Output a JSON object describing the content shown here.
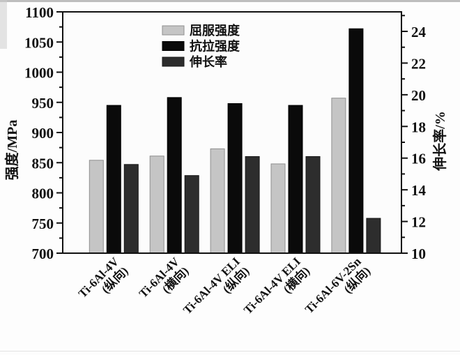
{
  "figure": {
    "background_color": "#fdfdfd",
    "plot_background": "#fcfcfc",
    "axis_color": "#111111"
  },
  "chart_data": {
    "type": "bar",
    "grid": false,
    "categories": [
      {
        "line1": "Ti-6Al-4V",
        "line2": "(纵向)"
      },
      {
        "line1": "Ti-6Al-4V",
        "line2": "(横向)"
      },
      {
        "line1": "Ti-6Al-4V ELI",
        "line2": "(纵向)"
      },
      {
        "line1": "Ti-6Al-4V ELI",
        "line2": "(横向)"
      },
      {
        "line1": "Ti-6Al-6V-2Sn",
        "line2": "(纵向)"
      }
    ],
    "series": [
      {
        "name": "屈服强度",
        "axis": "left",
        "color": "#c5c5c5",
        "edge": "#8f8f8f",
        "values": [
          854,
          861,
          873,
          848,
          957
        ]
      },
      {
        "name": "抗拉强度",
        "axis": "left",
        "color": "#0a0a0a",
        "edge": "#000000",
        "values": [
          945,
          958,
          948,
          945,
          1072
        ]
      },
      {
        "name": "伸长率",
        "axis": "right",
        "color": "#2d2d2d",
        "edge": "#161616",
        "values": [
          15.6,
          14.9,
          16.1,
          16.1,
          12.2
        ]
      }
    ],
    "left_axis": {
      "label": "强度/MPa",
      "min": 700,
      "max": 1100,
      "major_ticks": [
        700,
        750,
        800,
        850,
        900,
        950,
        1000,
        1050,
        1100
      ],
      "minor_ticks": [
        725,
        775,
        825,
        875,
        925,
        975,
        1025,
        1075
      ]
    },
    "right_axis": {
      "label": "伸长率/%",
      "min": 10,
      "max": 24,
      "major_ticks": [
        10,
        12,
        14,
        16,
        18,
        20,
        22,
        24
      ],
      "minor_ticks": [
        11,
        13,
        15,
        17,
        19,
        21,
        23,
        25
      ]
    },
    "legend": {
      "position": "upper-center-left",
      "entries": [
        "屈服强度",
        "抗拉强度",
        "伸长率"
      ]
    }
  }
}
